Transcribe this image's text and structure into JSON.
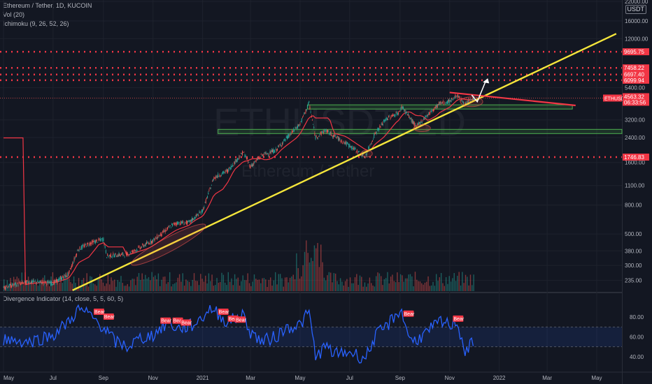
{
  "header": {
    "title": "Ethereum / Tether, 1D, KUCOIN",
    "vol": "Vol (20)",
    "ichimoku": "Ichimoku (9, 26, 52, 26)",
    "divergence": "Divergence Indicator (14, close, 5, 5, 60, 5)"
  },
  "watermark": {
    "symbol": "ETHUSDT, 1D",
    "name": "Ethereum / Tether"
  },
  "currency": "USDT",
  "colors": {
    "background": "#131722",
    "trendline": "#f5e63b",
    "resistance": "#f23645",
    "support_box": "#4caf50",
    "rsi": "#2962ff",
    "volume": "#2962ff",
    "ichimoku_base": "#f23645",
    "bull_candle": "#26a69a",
    "bear_candle": "#ef5350"
  },
  "chart_data": [
    {
      "type": "line",
      "name": "ETHUSDT price",
      "y_scale": "log",
      "ylim": [
        195,
        22000
      ],
      "x_ticks": [
        "May",
        "Jul",
        "Sep",
        "Nov",
        "2021",
        "Mar",
        "May",
        "Jul",
        "Sep",
        "Nov",
        "2022",
        "Mar",
        "May"
      ],
      "y_ticks": [
        235,
        300,
        380,
        500,
        800,
        1100,
        1600,
        2400,
        3200,
        5400,
        12000,
        16000,
        22000
      ],
      "price_x": [
        "2020-05-01",
        "2020-06-01",
        "2020-07-01",
        "2020-07-20",
        "2020-08-01",
        "2020-08-15",
        "2020-09-01",
        "2020-09-05",
        "2020-10-01",
        "2020-11-01",
        "2020-11-25",
        "2020-12-01",
        "2020-12-15",
        "2021-01-01",
        "2021-01-15",
        "2021-02-01",
        "2021-02-20",
        "2021-03-01",
        "2021-03-15",
        "2021-04-01",
        "2021-04-15",
        "2021-05-01",
        "2021-05-12",
        "2021-05-20",
        "2021-06-01",
        "2021-06-15",
        "2021-07-01",
        "2021-07-20",
        "2021-08-01",
        "2021-08-15",
        "2021-09-01",
        "2021-09-03",
        "2021-09-21",
        "2021-10-01",
        "2021-10-20",
        "2021-11-01",
        "2021-11-10",
        "2021-11-20",
        "2021-12-01"
      ],
      "price_y": [
        210,
        230,
        225,
        260,
        390,
        430,
        460,
        350,
        360,
        450,
        580,
        600,
        600,
        730,
        1250,
        1400,
        1900,
        1500,
        1800,
        1950,
        2400,
        3000,
        4200,
        2400,
        2700,
        2400,
        2100,
        1750,
        2550,
        3250,
        3650,
        4000,
        2850,
        3300,
        4200,
        4300,
        4800,
        4100,
        4563.32
      ],
      "last_price": "4563.32",
      "countdown": "06:33:56",
      "symbol_tag": "ETHUSDT",
      "horizontal_levels": [
        {
          "value": 9695.75,
          "label": "9695.75"
        },
        {
          "value": 7458.22,
          "label": "7458.22"
        },
        {
          "value": 6697.4,
          "label": "6697.40"
        },
        {
          "value": 6099.94,
          "label": "6099.94"
        },
        {
          "value": 1746.83,
          "label": "1746.83"
        }
      ],
      "support_zones": [
        {
          "value": 3950,
          "from": "2021-05-10",
          "to": "2022-04-01"
        },
        {
          "value": 2650,
          "from": "2021-01-20",
          "to": "2022-06-01"
        }
      ],
      "trendline": {
        "from": {
          "x": "2020-07-25",
          "y": 200
        },
        "to": {
          "x": "2022-05-25",
          "y": 13000
        }
      },
      "resistance_line": {
        "from": {
          "x": "2021-11-01",
          "y": 5000
        },
        "to": {
          "x": "2022-04-05",
          "y": 4050
        }
      }
    },
    {
      "type": "line",
      "name": "Divergence Indicator",
      "ylim": [
        25,
        95
      ],
      "y_ticks": [
        40,
        60,
        80
      ],
      "band": [
        50,
        70
      ],
      "x": [
        "2020-05-01",
        "2020-06-01",
        "2020-07-01",
        "2020-07-20",
        "2020-08-01",
        "2020-08-15",
        "2020-09-01",
        "2020-09-15",
        "2020-10-01",
        "2020-10-15",
        "2020-11-01",
        "2020-11-20",
        "2020-12-01",
        "2020-12-20",
        "2021-01-01",
        "2021-01-10",
        "2021-02-01",
        "2021-02-20",
        "2021-03-01",
        "2021-03-15",
        "2021-04-01",
        "2021-04-15",
        "2021-05-01",
        "2021-05-12",
        "2021-05-20",
        "2021-06-01",
        "2021-06-15",
        "2021-07-01",
        "2021-07-20",
        "2021-08-01",
        "2021-08-15",
        "2021-09-01",
        "2021-09-15",
        "2021-10-01",
        "2021-10-20",
        "2021-11-01",
        "2021-11-10",
        "2021-11-20",
        "2021-12-01"
      ],
      "values": [
        58,
        55,
        62,
        75,
        88,
        82,
        70,
        55,
        50,
        58,
        62,
        75,
        68,
        72,
        80,
        90,
        75,
        82,
        65,
        55,
        60,
        70,
        72,
        85,
        40,
        50,
        42,
        45,
        38,
        60,
        70,
        88,
        55,
        62,
        75,
        72,
        76,
        45,
        55
      ],
      "bear_labels": [
        {
          "x": "2020-08-20",
          "y": 83,
          "text": "Bear"
        },
        {
          "x": "2020-09-01",
          "y": 78,
          "text": "Bear"
        },
        {
          "x": "2020-11-10",
          "y": 74,
          "text": "Bear"
        },
        {
          "x": "2020-11-25",
          "y": 74,
          "text": "Bear"
        },
        {
          "x": "2020-12-05",
          "y": 72,
          "text": "Bear"
        },
        {
          "x": "2021-01-20",
          "y": 83,
          "text": "Bear"
        },
        {
          "x": "2021-02-01",
          "y": 76,
          "text": "Bear"
        },
        {
          "x": "2021-02-10",
          "y": 75,
          "text": "Bear"
        },
        {
          "x": "2021-09-05",
          "y": 81,
          "text": "Bear"
        },
        {
          "x": "2021-11-05",
          "y": 76,
          "text": "Bear"
        }
      ]
    }
  ]
}
